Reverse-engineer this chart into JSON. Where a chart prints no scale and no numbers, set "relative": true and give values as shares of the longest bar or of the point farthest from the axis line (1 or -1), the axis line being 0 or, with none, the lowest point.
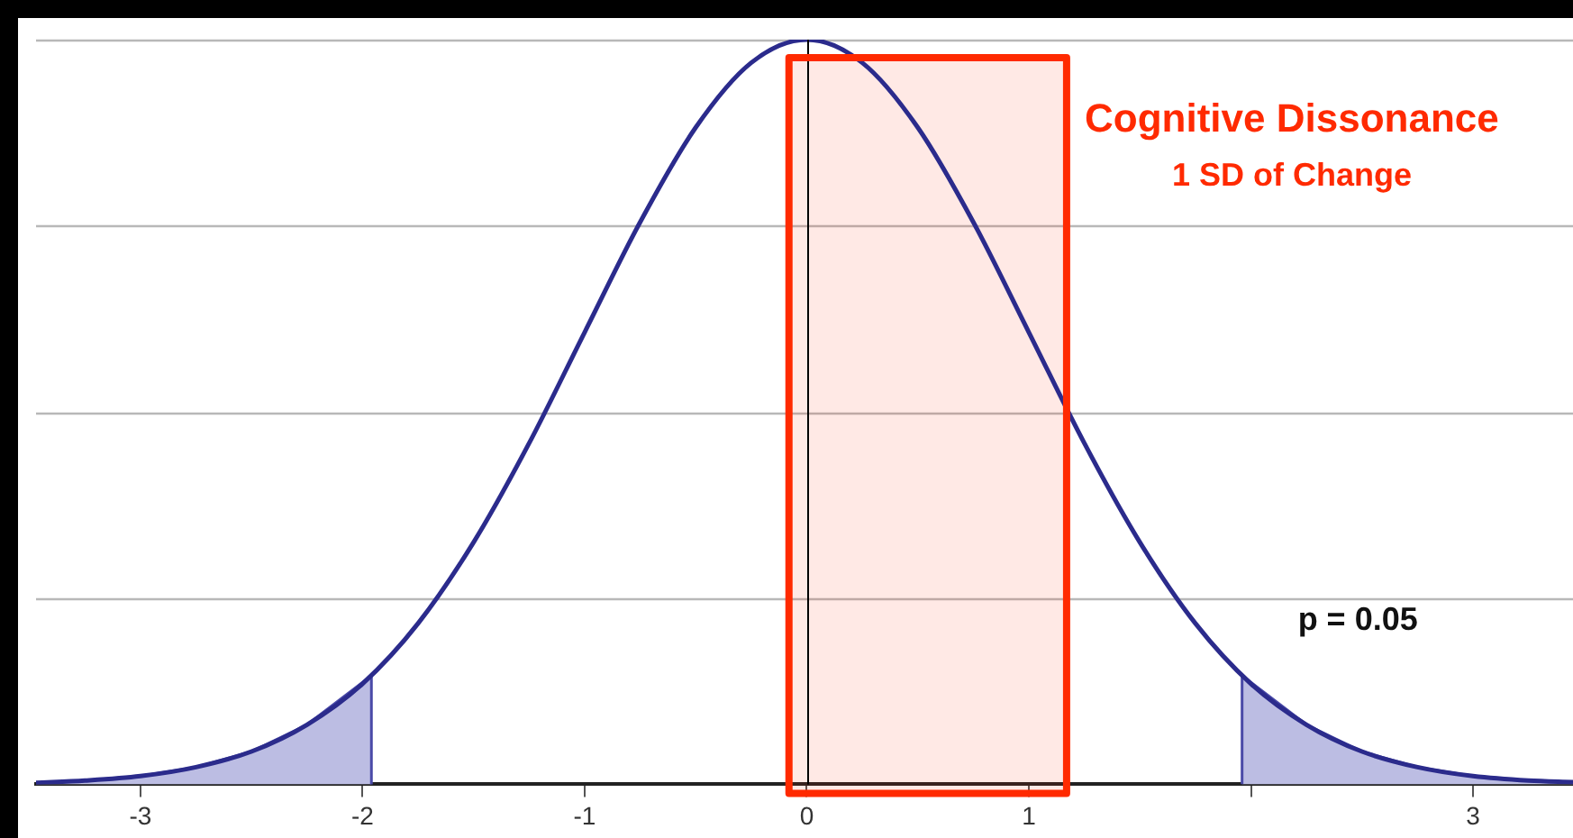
{
  "chart_data": {
    "type": "line",
    "relative": true,
    "grid": "y",
    "marker": "none",
    "legend": false,
    "x": [
      -3.47,
      -3.25,
      -3,
      -2.75,
      -2.5,
      -2.25,
      -2,
      -1.75,
      -1.5,
      -1.25,
      -1,
      -0.75,
      -0.5,
      -0.25,
      0,
      0.25,
      0.5,
      0.75,
      1,
      1.25,
      1.5,
      1.75,
      2,
      2.25,
      2.5,
      2.75,
      3,
      3.25,
      3.45
    ],
    "xlim": [
      -3.47,
      3.45
    ],
    "xticks": [
      -3,
      -2,
      -1,
      0,
      1,
      {
        "value": 2,
        "label": null
      },
      3
    ],
    "series": [
      {
        "color": "#2b2b8c",
        "values": [
          0.002,
          0.005,
          0.011,
          0.023,
          0.044,
          0.08,
          0.135,
          0.216,
          0.325,
          0.458,
          0.607,
          0.755,
          0.882,
          0.969,
          1,
          0.969,
          0.882,
          0.755,
          0.607,
          0.458,
          0.325,
          0.216,
          0.135,
          0.08,
          0.044,
          0.023,
          0.011,
          0.005,
          0.003
        ]
      },
      {
        "type": "area",
        "color": "#bcbde3",
        "x": [
          -3.47,
          -3.25,
          -3,
          -2.75,
          -2.5,
          -2.25,
          -1.96,
          -1.96
        ],
        "values": [
          0.002,
          0.005,
          0.011,
          0.023,
          0.044,
          0.08,
          0.146,
          0
        ]
      },
      {
        "type": "area",
        "color": "#bcbde3",
        "x": [
          1.96,
          1.96,
          2.25,
          2.5,
          2.75,
          3,
          3.25,
          3.45
        ],
        "values": [
          0,
          0.146,
          0.08,
          0.044,
          0.023,
          0.011,
          0.005,
          0.003
        ]
      }
    ],
    "ref_lines": [
      {
        "axis": "x",
        "value": 0,
        "color": "#000000"
      }
    ],
    "bands": [
      {
        "axis": "x",
        "from": -0.08,
        "to": 1.17,
        "color": "#ff2a00",
        "label": "Cognitive Dissonance\n1 SD of Change"
      }
    ],
    "annotations": [
      "p = 0.05"
    ]
  }
}
